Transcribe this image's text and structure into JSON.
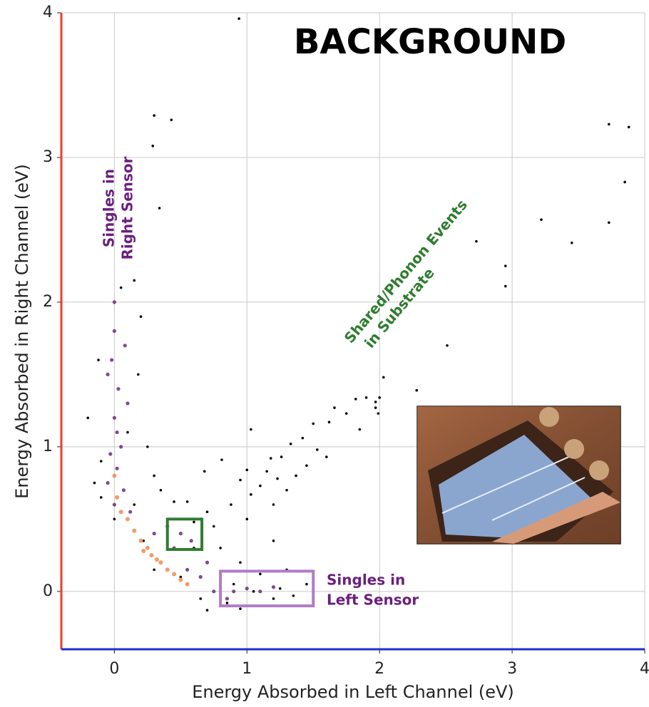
{
  "chart_data": {
    "type": "scatter",
    "title": "BACKGROUND",
    "xlabel": "Energy Absorbed in Left Channel (eV)",
    "ylabel": "Energy Absorbed in Right Channel (eV)",
    "xlim": [
      -0.4,
      4
    ],
    "ylim": [
      -0.4,
      4
    ],
    "xticks": [
      0,
      1,
      2,
      3,
      4
    ],
    "yticks": [
      0,
      1,
      2,
      3,
      4
    ],
    "grid": true,
    "left_spine_color": "#e8402a",
    "bottom_spine_color": "#1f2fd0",
    "series": [
      {
        "color": "#000000",
        "x": [
          0.94,
          0.3,
          0.43,
          0.29,
          0.34,
          3.73,
          3.88,
          3.85,
          3.22,
          3.73,
          3.45,
          2.73,
          2.95,
          2.95,
          2.51,
          2.03,
          2.28,
          1.9,
          1.97,
          2.0,
          1.82,
          1.66,
          1.75,
          1.62,
          1.97,
          1.99,
          1.5,
          1.85,
          1.42,
          1.53,
          1.03,
          1.6,
          1.33,
          1.18,
          1.26,
          0.81,
          1.45,
          1.15,
          1.0,
          1.37,
          1.23,
          0.95,
          1.1,
          1.3,
          1.03,
          0.88,
          1.2,
          0.68,
          1.2,
          1.0,
          -0.2,
          -0.15,
          -0.1,
          -0.12,
          0.05,
          0.15,
          0.2,
          0.18,
          0.1,
          0.3,
          0.35,
          0.45,
          0.55,
          0.7,
          0.6,
          0.75,
          0.8,
          0.95,
          1.1,
          1.3,
          1.45,
          1.5,
          1.2,
          0.95,
          0.7,
          0.65,
          0.9,
          1.05,
          1.25,
          0.5,
          0.3,
          0.0,
          -0.1,
          0.22,
          0.4,
          0.15,
          0.85,
          1.35,
          0.6,
          0.25
        ],
        "y": [
          3.96,
          3.29,
          3.26,
          3.08,
          2.65,
          3.23,
          3.21,
          2.83,
          2.57,
          2.55,
          2.41,
          2.42,
          2.25,
          2.11,
          1.7,
          1.48,
          1.39,
          1.34,
          1.31,
          1.34,
          1.33,
          1.27,
          1.23,
          1.17,
          1.27,
          1.23,
          1.16,
          1.12,
          1.06,
          0.98,
          1.12,
          0.93,
          1.02,
          0.92,
          0.93,
          0.91,
          0.87,
          0.83,
          0.84,
          0.8,
          0.78,
          0.77,
          0.73,
          0.7,
          0.67,
          0.6,
          0.6,
          0.83,
          0.35,
          0.5,
          1.2,
          0.75,
          0.9,
          1.6,
          2.1,
          2.15,
          1.9,
          1.5,
          1.1,
          0.8,
          0.7,
          0.62,
          0.62,
          0.55,
          0.48,
          0.45,
          0.3,
          0.2,
          0.12,
          0.15,
          0.05,
          -0.02,
          -0.05,
          -0.12,
          -0.13,
          -0.05,
          0.05,
          0.0,
          0.02,
          0.1,
          0.15,
          0.5,
          0.65,
          0.35,
          0.35,
          0.6,
          -0.08,
          -0.03,
          0.3,
          1.0
        ]
      },
      {
        "color": "#6b2a7e",
        "x": [
          0.0,
          -0.02,
          0.03,
          0.0,
          0.05,
          -0.03,
          0.02,
          -0.05,
          0.07,
          0.1,
          -0.05,
          0.08,
          0.0,
          0.12,
          0.3,
          0.45,
          0.55,
          0.65,
          0.75,
          0.85,
          0.9,
          1.0,
          1.1,
          1.2,
          0.7,
          0.4,
          0.5,
          0.58,
          0.0,
          0.02
        ],
        "y": [
          1.8,
          1.6,
          1.4,
          1.2,
          1.0,
          0.95,
          0.85,
          0.75,
          0.7,
          1.3,
          1.5,
          1.7,
          2.0,
          0.55,
          0.4,
          0.3,
          0.15,
          0.1,
          0.0,
          -0.05,
          0.0,
          0.02,
          0.0,
          0.03,
          0.2,
          0.45,
          0.4,
          0.35,
          0.6,
          1.1
        ]
      },
      {
        "color": "#f0884f",
        "x": [
          0.05,
          0.1,
          0.15,
          0.2,
          0.25,
          0.28,
          0.32,
          0.35,
          0.4,
          0.45,
          0.5,
          0.55,
          0.02,
          0.0,
          0.22
        ],
        "y": [
          0.55,
          0.5,
          0.42,
          0.35,
          0.3,
          0.25,
          0.22,
          0.2,
          0.15,
          0.12,
          0.08,
          0.05,
          0.65,
          0.8,
          0.28
        ]
      }
    ],
    "regions": [
      {
        "xlim": [
          0.4,
          0.66
        ],
        "ylim": [
          0.29,
          0.5
        ],
        "color": "#2e7d2e"
      },
      {
        "xlim": [
          0.8,
          1.5
        ],
        "ylim": [
          -0.1,
          0.14
        ],
        "color": "#b07cc6"
      }
    ],
    "annotations": [
      {
        "text": [
          "Singles in",
          "Right Sensor"
        ],
        "color": "#6b1f7e"
      },
      {
        "text": [
          "Shared/Phonon Events",
          "in Substrate"
        ],
        "color": "#2e7d2e"
      },
      {
        "text": [
          "Singles in",
          "Left Sensor"
        ],
        "color": "#6b1f7e"
      }
    ]
  }
}
